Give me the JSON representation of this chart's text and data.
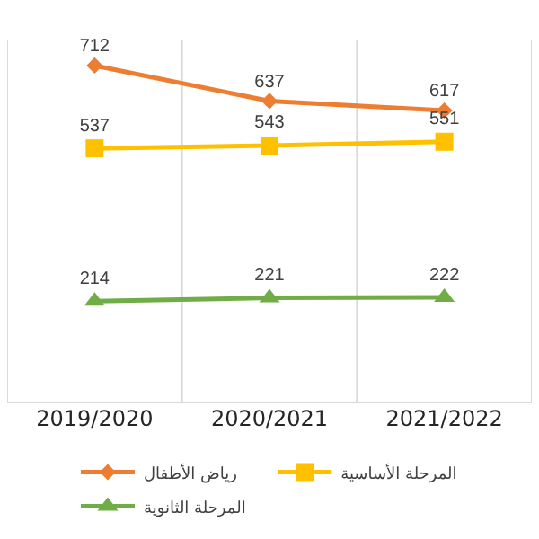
{
  "chart_data": {
    "type": "line",
    "categories": [
      "2019/2020",
      "2020/2021",
      "2021/2022"
    ],
    "series": [
      {
        "name": "رياض الأطفال",
        "color": "#ed7d31",
        "marker": "diamond",
        "values": [
          712,
          637,
          617
        ]
      },
      {
        "name": "المرحلة الأساسية",
        "color": "#ffc000",
        "marker": "square",
        "values": [
          537,
          543,
          551
        ]
      },
      {
        "name": "المرحلة الثانوية",
        "color": "#70ad47",
        "marker": "triangle",
        "values": [
          214,
          221,
          222
        ]
      }
    ],
    "data_labels": true,
    "grid": "x",
    "legend": "bottom",
    "line_style": "solid"
  }
}
